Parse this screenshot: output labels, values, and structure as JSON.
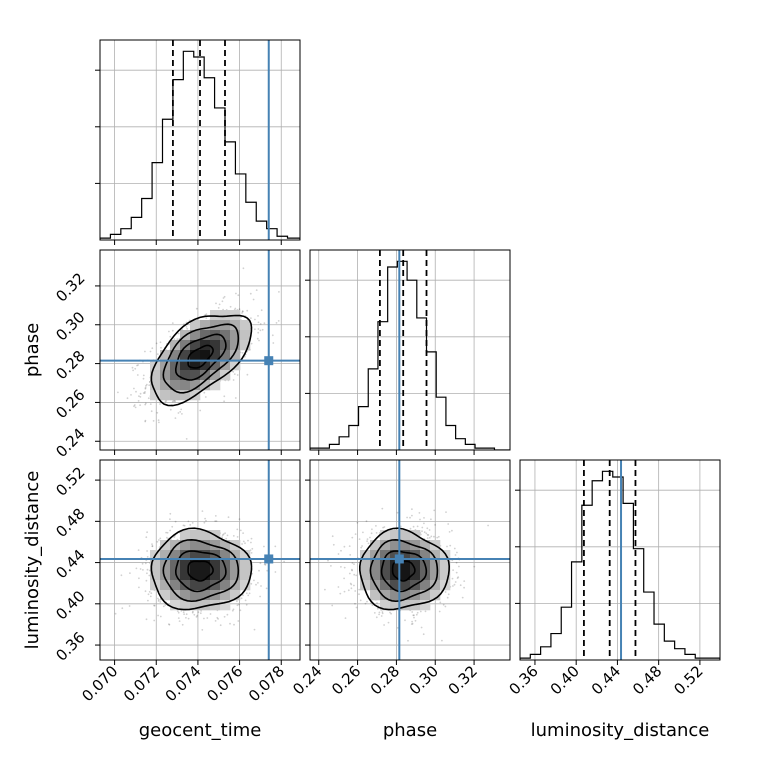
{
  "colors": {
    "truth": "#4682b4",
    "frame": "#000000",
    "grid": "#b0b0b0",
    "density_dark": "#000000",
    "density_light": "#f2f2f2",
    "background": "#ffffff"
  },
  "chart_data": {
    "type": "corner",
    "parameters": [
      {
        "name": "geocent_time",
        "range": [
          0.0693,
          0.0789
        ],
        "ticks": [
          "0.070",
          "0.072",
          "0.074",
          "0.076",
          "0.078"
        ],
        "tick_values": [
          0.07,
          0.072,
          0.074,
          0.076,
          0.078
        ],
        "truth": 0.0774,
        "quantiles": [
          0.0728,
          0.0741,
          0.0753
        ]
      },
      {
        "name": "phase",
        "range": [
          0.2355,
          0.3385
        ],
        "ticks": [
          "0.24",
          "0.26",
          "0.28",
          "0.30",
          "0.32"
        ],
        "tick_values": [
          0.24,
          0.26,
          0.28,
          0.3,
          0.32
        ],
        "truth": 0.2815,
        "quantiles": [
          0.2715,
          0.2835,
          0.2955
        ]
      },
      {
        "name": "luminosity_distance",
        "range": [
          0.3455,
          0.5395
        ],
        "ticks": [
          "0.36",
          "0.40",
          "0.44",
          "0.48",
          "0.52"
        ],
        "tick_values": [
          0.36,
          0.4,
          0.44,
          0.48,
          0.52
        ],
        "truth": 0.4435,
        "quantiles": [
          0.4075,
          0.4325,
          0.4575
        ]
      }
    ],
    "histograms": [
      {
        "parameter": "geocent_time",
        "bins": [
          0.0693,
          0.0698,
          0.0703,
          0.0708,
          0.0713,
          0.0718,
          0.0723,
          0.0728,
          0.0733,
          0.0738,
          0.0743,
          0.0748,
          0.0753,
          0.0758,
          0.0763,
          0.0768,
          0.0773,
          0.0778,
          0.0783,
          0.0789
        ],
        "counts": [
          1,
          3,
          6,
          12,
          22,
          41,
          64,
          85,
          100,
          97,
          86,
          70,
          52,
          35,
          20,
          10,
          6,
          2,
          1
        ]
      },
      {
        "parameter": "phase",
        "bins": [
          0.2355,
          0.2405,
          0.2455,
          0.2505,
          0.2555,
          0.2605,
          0.2655,
          0.2705,
          0.2755,
          0.2805,
          0.2855,
          0.2905,
          0.2955,
          0.3005,
          0.3055,
          0.3105,
          0.3155,
          0.3205,
          0.3255,
          0.3305,
          0.3385
        ],
        "counts": [
          1,
          1,
          3,
          7,
          13,
          23,
          43,
          68,
          97,
          100,
          90,
          70,
          52,
          28,
          13,
          6,
          3,
          1,
          1,
          0
        ]
      },
      {
        "parameter": "luminosity_distance",
        "bins": [
          0.3455,
          0.3555,
          0.3655,
          0.3755,
          0.3855,
          0.3955,
          0.4055,
          0.4155,
          0.4255,
          0.4355,
          0.4455,
          0.4555,
          0.4655,
          0.4755,
          0.4855,
          0.4955,
          0.5055,
          0.5155,
          0.5255,
          0.5395
        ],
        "counts": [
          1,
          3,
          7,
          14,
          28,
          52,
          82,
          95,
          100,
          97,
          83,
          59,
          36,
          19,
          10,
          6,
          3,
          1,
          1
        ]
      }
    ],
    "scatter_2d": [
      {
        "x": "geocent_time",
        "y": "phase",
        "center": [
          0.0741,
          0.2835
        ],
        "sd": [
          0.0012,
          0.0115
        ],
        "correlation": 0.55
      },
      {
        "x": "geocent_time",
        "y": "luminosity_distance",
        "center": [
          0.0741,
          0.4325
        ],
        "sd": [
          0.0012,
          0.019
        ],
        "correlation": 0.0
      },
      {
        "x": "phase",
        "y": "luminosity_distance",
        "center": [
          0.2835,
          0.4325
        ],
        "sd": [
          0.0115,
          0.019
        ],
        "correlation": 0.0
      }
    ],
    "contour_levels": [
      0.5,
      1.0,
      1.5,
      2.0
    ],
    "grid": true
  }
}
